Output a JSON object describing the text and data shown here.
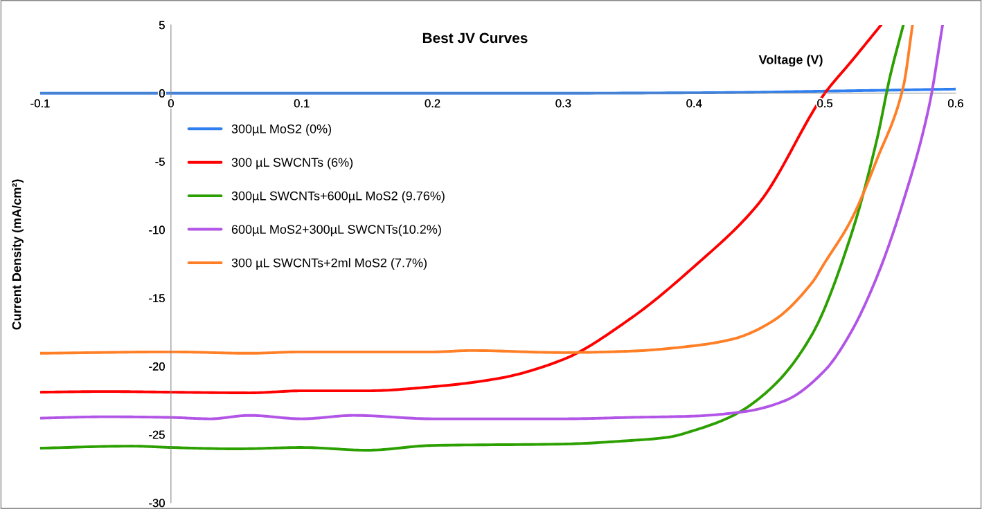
{
  "chart_data": {
    "type": "line",
    "title": "Best JV Curves",
    "xlabel": "Voltage (V)",
    "ylabel": "Current Density (mA/cm²)",
    "xlim": [
      -0.1,
      0.6
    ],
    "xticks": [
      -0.1,
      0,
      0.1,
      0.2,
      0.3,
      0.4,
      0.5,
      0.6
    ],
    "ylim": [
      -30,
      5
    ],
    "yticks": [
      -30,
      -25,
      -20,
      -15,
      -10,
      -5,
      0,
      5
    ],
    "grid": false,
    "legend": "left",
    "marker": "none",
    "line_style": "solid",
    "series": [
      {
        "name": "300µL MoS2 (0%)",
        "color": "#2f7ff0",
        "x": [
          -0.1,
          0,
          0.1,
          0.2,
          0.3,
          0.4,
          0.45,
          0.5,
          0.55,
          0.6
        ],
        "values": [
          0,
          0,
          0,
          0,
          0,
          0.03,
          0.07,
          0.15,
          0.22,
          0.3
        ]
      },
      {
        "name": "300 µL SWCNTs (6%)",
        "color": "#ff0000",
        "x": [
          -0.1,
          -0.05,
          0,
          0.06,
          0.1,
          0.15,
          0.2,
          0.25,
          0.3,
          0.35,
          0.4,
          0.45,
          0.5,
          0.52,
          0.543
        ],
        "values": [
          -21.9,
          -21.85,
          -21.9,
          -21.95,
          -21.8,
          -21.8,
          -21.5,
          -20.9,
          -19.5,
          -16.6,
          -12.7,
          -8.0,
          0,
          2.3,
          5
        ]
      },
      {
        "name": "300µL SWCNTs+600µL MoS2 (9.76%)",
        "color": "#2ca000",
        "x": [
          -0.1,
          -0.03,
          0,
          0.05,
          0.1,
          0.15,
          0.2,
          0.3,
          0.35,
          0.38,
          0.4,
          0.43,
          0.46,
          0.49,
          0.52,
          0.54,
          0.55,
          0.56
        ],
        "values": [
          -26.0,
          -25.85,
          -25.95,
          -26.05,
          -25.95,
          -26.15,
          -25.8,
          -25.7,
          -25.45,
          -25.2,
          -24.7,
          -23.6,
          -21.5,
          -17.7,
          -10.4,
          -3.3,
          1.3,
          5
        ]
      },
      {
        "name": "600µL MoS2+300µL SWCNTs(10.2%)",
        "color": "#b255e6",
        "x": [
          -0.1,
          -0.05,
          0,
          0.03,
          0.06,
          0.1,
          0.14,
          0.2,
          0.3,
          0.35,
          0.4,
          0.44,
          0.47,
          0.5,
          0.52,
          0.54,
          0.56,
          0.58,
          0.59
        ],
        "values": [
          -23.8,
          -23.7,
          -23.75,
          -23.85,
          -23.6,
          -23.85,
          -23.6,
          -23.85,
          -23.85,
          -23.75,
          -23.65,
          -23.3,
          -22.5,
          -20.3,
          -17.5,
          -13.4,
          -7.9,
          -0.8,
          5
        ]
      },
      {
        "name": "300 µL SWCNTs+2ml MoS2 (7.7%)",
        "color": "#ff7f27",
        "x": [
          -0.1,
          0,
          0.06,
          0.1,
          0.2,
          0.23,
          0.3,
          0.35,
          0.4,
          0.43,
          0.46,
          0.49,
          0.5,
          0.52,
          0.54,
          0.56,
          0.567
        ],
        "values": [
          -19.05,
          -18.95,
          -19.05,
          -18.95,
          -18.95,
          -18.85,
          -19.0,
          -18.9,
          -18.5,
          -18.0,
          -16.7,
          -13.9,
          -12.4,
          -9.3,
          -4.8,
          0.5,
          5
        ]
      }
    ]
  }
}
